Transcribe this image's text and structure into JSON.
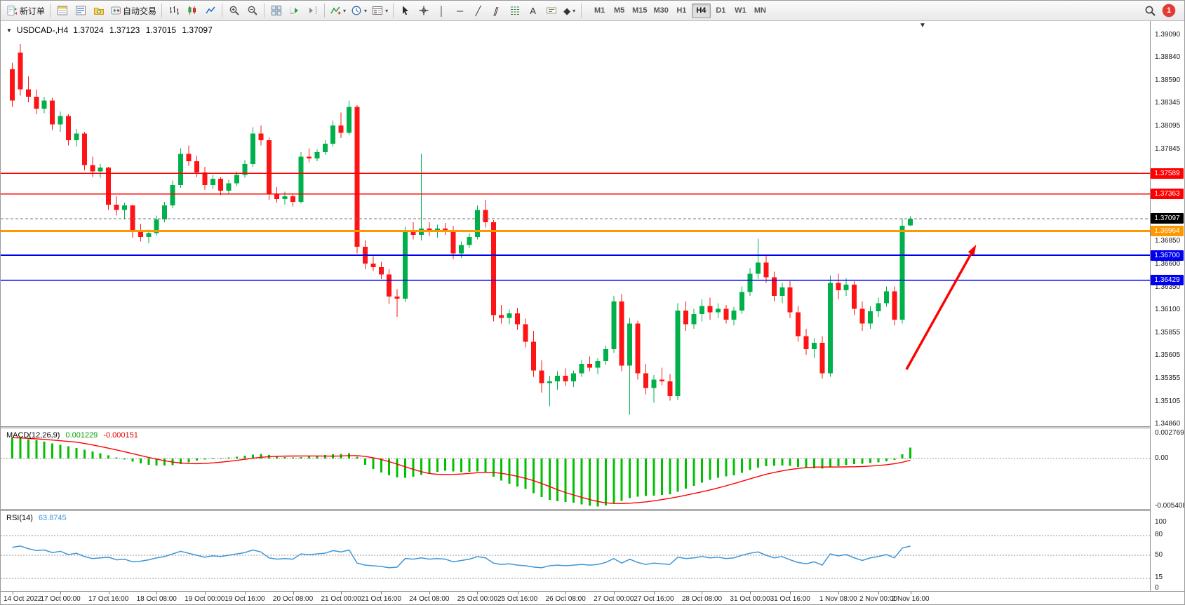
{
  "toolbar": {
    "new_order": "新订单",
    "autotrading": "自动交易",
    "timeframes": [
      "M1",
      "M5",
      "M15",
      "M30",
      "H1",
      "H4",
      "D1",
      "W1",
      "MN"
    ],
    "active_timeframe": "H4",
    "notification_count": "1",
    "glyphs": {
      "caret": "▾",
      "vline": "│",
      "hline": "─",
      "trendline": "╱",
      "channel": "∥",
      "text": "A",
      "arrows": "◆"
    }
  },
  "chart": {
    "symbol_caret": "▼",
    "title": "USDCAD-,H4",
    "ohlc": "1.37024 1.37123 1.37015 1.37097",
    "shift_marker": "▼"
  },
  "chart_data": {
    "type": "candlestick",
    "symbol": "USDCAD-",
    "timeframe": "H4",
    "current": {
      "open": 1.37024,
      "high": 1.37123,
      "low": 1.37015,
      "close": 1.37097
    },
    "colors": {
      "bull": "#00b04a",
      "bear": "#fe1414"
    },
    "y_axis_ticks": [
      "1.39090",
      "1.38840",
      "1.38590",
      "1.38345",
      "1.38095",
      "1.37845",
      "1.36850",
      "1.36600",
      "1.36350",
      "1.36100",
      "1.35855",
      "1.35605",
      "1.35355",
      "1.35105",
      "1.34860"
    ],
    "x_labels": [
      "14 Oct 2022",
      "17 Oct 00:00",
      "17 Oct 16:00",
      "18 Oct 08:00",
      "19 Oct 00:00",
      "19 Oct 16:00",
      "20 Oct 08:00",
      "21 Oct 00:00",
      "21 Oct 16:00",
      "24 Oct 08:00",
      "25 Oct 00:00",
      "25 Oct 16:00",
      "26 Oct 08:00",
      "27 Oct 00:00",
      "27 Oct 16:00",
      "28 Oct 08:00",
      "31 Oct 00:00",
      "31 Oct 16:00",
      "1 Nov 08:00",
      "2 Nov 00:00",
      "2 Nov 16:00"
    ],
    "x_label_bars": [
      0,
      6,
      12,
      18,
      24,
      29,
      35,
      41,
      46,
      52,
      58,
      63,
      69,
      75,
      80,
      86,
      92,
      97,
      103,
      108,
      112
    ],
    "hlines": [
      {
        "price": 1.37589,
        "label": "1.37589",
        "color": "#ff0000",
        "width": 1.4
      },
      {
        "price": 1.37363,
        "label": "1.37363",
        "color": "#ff0000",
        "width": 1.4
      },
      {
        "price": 1.36964,
        "label": "1.36964",
        "color": "#ff9800",
        "width": 3
      },
      {
        "price": 1.367,
        "label": "1.36700",
        "color": "#0000ee",
        "width": 1.8
      },
      {
        "price": 1.36429,
        "label": "1.36429",
        "color": "#0000ee",
        "width": 1.8
      }
    ],
    "current_price": {
      "value": 1.37097,
      "label": "1.37097",
      "color": "#000000"
    },
    "trend_arrow": {
      "from_bar": 111.5,
      "from_price": 1.3546,
      "to_bar": 120.2,
      "to_price": 1.36815,
      "color": "#ff0000"
    },
    "candles": [
      [
        1.3872,
        1.3879,
        1.3831,
        1.3838
      ],
      [
        1.389,
        1.3899,
        1.3843,
        1.385
      ],
      [
        1.385,
        1.3864,
        1.3836,
        1.3842
      ],
      [
        1.3842,
        1.385,
        1.3823,
        1.3829
      ],
      [
        1.3829,
        1.3842,
        1.3824,
        1.3838
      ],
      [
        1.3838,
        1.3841,
        1.3806,
        1.3812
      ],
      [
        1.3812,
        1.3826,
        1.3804,
        1.3821
      ],
      [
        1.3821,
        1.3823,
        1.3789,
        1.3795
      ],
      [
        1.3795,
        1.3807,
        1.3788,
        1.3802
      ],
      [
        1.3802,
        1.3804,
        1.3762,
        1.3768
      ],
      [
        1.3768,
        1.3777,
        1.3755,
        1.3761
      ],
      [
        1.3761,
        1.3769,
        1.3754,
        1.3765
      ],
      [
        1.3765,
        1.3766,
        1.3719,
        1.3725
      ],
      [
        1.3725,
        1.3734,
        1.3713,
        1.3719
      ],
      [
        1.3719,
        1.3727,
        1.3709,
        1.3724
      ],
      [
        1.3724,
        1.3725,
        1.3689,
        1.3695
      ],
      [
        1.3695,
        1.3704,
        1.3685,
        1.369
      ],
      [
        1.369,
        1.3698,
        1.3683,
        1.3694
      ],
      [
        1.3694,
        1.3713,
        1.3691,
        1.3709
      ],
      [
        1.3709,
        1.3728,
        1.3706,
        1.3724
      ],
      [
        1.3724,
        1.3751,
        1.3721,
        1.3746
      ],
      [
        1.3746,
        1.3786,
        1.3743,
        1.378
      ],
      [
        1.378,
        1.3789,
        1.3767,
        1.3772
      ],
      [
        1.3772,
        1.3778,
        1.3755,
        1.376
      ],
      [
        1.376,
        1.3766,
        1.3741,
        1.3746
      ],
      [
        1.3746,
        1.3757,
        1.3742,
        1.3753
      ],
      [
        1.3753,
        1.3755,
        1.3735,
        1.374
      ],
      [
        1.374,
        1.3752,
        1.3737,
        1.3748
      ],
      [
        1.3748,
        1.3761,
        1.3745,
        1.3757
      ],
      [
        1.3757,
        1.3773,
        1.3754,
        1.3769
      ],
      [
        1.3769,
        1.3809,
        1.3766,
        1.3802
      ],
      [
        1.3802,
        1.3811,
        1.3789,
        1.3795
      ],
      [
        1.3795,
        1.3798,
        1.373,
        1.3736
      ],
      [
        1.3736,
        1.3744,
        1.3727,
        1.3731
      ],
      [
        1.3731,
        1.3739,
        1.3725,
        1.3734
      ],
      [
        1.3734,
        1.3736,
        1.3723,
        1.3728
      ],
      [
        1.3728,
        1.3782,
        1.3726,
        1.3777
      ],
      [
        1.3777,
        1.3786,
        1.3771,
        1.3775
      ],
      [
        1.3775,
        1.3785,
        1.3772,
        1.3782
      ],
      [
        1.3782,
        1.3795,
        1.3779,
        1.3791
      ],
      [
        1.3791,
        1.3816,
        1.3788,
        1.3811
      ],
      [
        1.3811,
        1.3825,
        1.3797,
        1.3803
      ],
      [
        1.3803,
        1.3838,
        1.38,
        1.3831
      ],
      [
        1.3831,
        1.3833,
        1.3672,
        1.3679
      ],
      [
        1.3679,
        1.3686,
        1.3655,
        1.3661
      ],
      [
        1.3661,
        1.3669,
        1.3653,
        1.3657
      ],
      [
        1.3657,
        1.3663,
        1.3644,
        1.3649
      ],
      [
        1.3649,
        1.3655,
        1.3617,
        1.3625
      ],
      [
        1.3625,
        1.3633,
        1.3603,
        1.3623
      ],
      [
        1.3623,
        1.3701,
        1.3619,
        1.3695
      ],
      [
        1.3695,
        1.3706,
        1.3687,
        1.3692
      ],
      [
        1.3692,
        1.378,
        1.3686,
        1.3699
      ],
      [
        1.3699,
        1.3706,
        1.3691,
        1.3695
      ],
      [
        1.3695,
        1.3703,
        1.3689,
        1.3699
      ],
      [
        1.3699,
        1.3705,
        1.3692,
        1.3696
      ],
      [
        1.3696,
        1.3702,
        1.3666,
        1.3672
      ],
      [
        1.3672,
        1.3685,
        1.3667,
        1.3681
      ],
      [
        1.3681,
        1.3694,
        1.3678,
        1.369
      ],
      [
        1.369,
        1.3724,
        1.3687,
        1.3719
      ],
      [
        1.3719,
        1.373,
        1.37,
        1.3706
      ],
      [
        1.3706,
        1.3708,
        1.3598,
        1.3605
      ],
      [
        1.3605,
        1.3616,
        1.3596,
        1.3602
      ],
      [
        1.3602,
        1.3611,
        1.3595,
        1.3607
      ],
      [
        1.3607,
        1.3613,
        1.3589,
        1.3595
      ],
      [
        1.3595,
        1.3601,
        1.357,
        1.3576
      ],
      [
        1.3576,
        1.3588,
        1.3538,
        1.3545
      ],
      [
        1.3545,
        1.3556,
        1.3521,
        1.3531
      ],
      [
        1.3531,
        1.3539,
        1.3506,
        1.3533
      ],
      [
        1.3533,
        1.3544,
        1.3524,
        1.3539
      ],
      [
        1.3539,
        1.3547,
        1.3528,
        1.3533
      ],
      [
        1.3533,
        1.3545,
        1.3527,
        1.3542
      ],
      [
        1.3542,
        1.3556,
        1.3538,
        1.3552
      ],
      [
        1.3552,
        1.356,
        1.3544,
        1.3548
      ],
      [
        1.3548,
        1.3558,
        1.3541,
        1.3555
      ],
      [
        1.3555,
        1.3572,
        1.3551,
        1.3568
      ],
      [
        1.3568,
        1.3626,
        1.3564,
        1.362
      ],
      [
        1.362,
        1.3628,
        1.3544,
        1.355
      ],
      [
        1.355,
        1.3602,
        1.3497,
        1.3596
      ],
      [
        1.3596,
        1.3599,
        1.3535,
        1.3542
      ],
      [
        1.3542,
        1.3552,
        1.3519,
        1.3526
      ],
      [
        1.3526,
        1.354,
        1.351,
        1.3535
      ],
      [
        1.3535,
        1.3548,
        1.3529,
        1.3533
      ],
      [
        1.3533,
        1.3541,
        1.3512,
        1.3517
      ],
      [
        1.3517,
        1.3618,
        1.3513,
        1.361
      ],
      [
        1.361,
        1.362,
        1.3588,
        1.3595
      ],
      [
        1.3595,
        1.3612,
        1.359,
        1.3606
      ],
      [
        1.3606,
        1.3622,
        1.3598,
        1.3615
      ],
      [
        1.3615,
        1.3624,
        1.36,
        1.3608
      ],
      [
        1.3608,
        1.3618,
        1.3602,
        1.3612
      ],
      [
        1.3612,
        1.3616,
        1.3596,
        1.36
      ],
      [
        1.36,
        1.3614,
        1.3594,
        1.361
      ],
      [
        1.361,
        1.3636,
        1.3606,
        1.363
      ],
      [
        1.363,
        1.3656,
        1.3626,
        1.365
      ],
      [
        1.365,
        1.3688,
        1.3644,
        1.3662
      ],
      [
        1.3662,
        1.367,
        1.364,
        1.3646
      ],
      [
        1.3646,
        1.3652,
        1.362,
        1.3626
      ],
      [
        1.3626,
        1.364,
        1.3618,
        1.3635
      ],
      [
        1.3635,
        1.3642,
        1.3602,
        1.3608
      ],
      [
        1.3608,
        1.3615,
        1.3576,
        1.3582
      ],
      [
        1.3582,
        1.359,
        1.3562,
        1.3568
      ],
      [
        1.3568,
        1.358,
        1.3558,
        1.3575
      ],
      [
        1.3575,
        1.3582,
        1.3536,
        1.3542
      ],
      [
        1.3542,
        1.3648,
        1.3538,
        1.364
      ],
      [
        1.364,
        1.365,
        1.3622,
        1.3632
      ],
      [
        1.3632,
        1.3645,
        1.3626,
        1.3638
      ],
      [
        1.3638,
        1.3642,
        1.3605,
        1.3612
      ],
      [
        1.3612,
        1.362,
        1.3588,
        1.3596
      ],
      [
        1.3596,
        1.3615,
        1.359,
        1.3609
      ],
      [
        1.3609,
        1.3624,
        1.3603,
        1.3618
      ],
      [
        1.3618,
        1.3636,
        1.3614,
        1.3631
      ],
      [
        1.3631,
        1.3636,
        1.3594,
        1.36
      ],
      [
        1.36,
        1.371,
        1.3596,
        1.3702
      ],
      [
        1.37024,
        1.37123,
        1.37015,
        1.37097
      ]
    ],
    "macd": {
      "name": "MACD(12,26,9)",
      "value": "0.001229",
      "signal_value": "-0.000151",
      "axis": [
        "0.002769",
        "0.00",
        "-0.005408"
      ],
      "hist_color": "#00c000",
      "signal_color": "#ff0000",
      "values": [
        0.00235,
        0.00228,
        0.00218,
        0.00205,
        0.0019,
        0.00172,
        0.00155,
        0.00138,
        0.0012,
        0.001,
        0.00078,
        0.00058,
        0.00035,
        0.0001,
        -0.00012,
        -0.00035,
        -0.00055,
        -0.0007,
        -0.00078,
        -0.0008,
        -0.00075,
        -0.00062,
        -0.00045,
        -0.00025,
        -0.00012,
        -5e-05,
        2e-05,
        0.0001,
        0.0002,
        0.00032,
        0.00045,
        0.00052,
        0.0004,
        0.00025,
        0.00015,
        0.0001,
        0.00015,
        0.00022,
        0.0003,
        0.00038,
        0.00046,
        0.00052,
        0.00058,
        0.0002,
        -0.0007,
        -0.0012,
        -0.0016,
        -0.0019,
        -0.00212,
        -0.00218,
        -0.00205,
        -0.00185,
        -0.00165,
        -0.0015,
        -0.0014,
        -0.00148,
        -0.00155,
        -0.00152,
        -0.00148,
        -0.00158,
        -0.00205,
        -0.0025,
        -0.00285,
        -0.00315,
        -0.00345,
        -0.0039,
        -0.00435,
        -0.00468,
        -0.00482,
        -0.00492,
        -0.005,
        -0.0052,
        -0.00535,
        -0.00541,
        -0.00528,
        -0.00505,
        -0.00478,
        -0.00445,
        -0.0043,
        -0.00424,
        -0.00418,
        -0.00412,
        -0.00405,
        -0.00375,
        -0.00342,
        -0.00308,
        -0.00272,
        -0.00242,
        -0.00218,
        -0.00202,
        -0.00188,
        -0.00162,
        -0.00132,
        -0.00102,
        -0.00088,
        -0.00083,
        -0.0008,
        -0.00084,
        -0.00094,
        -0.00104,
        -0.0011,
        -0.00116,
        -0.00104,
        -0.00088,
        -0.00074,
        -0.00064,
        -0.0006,
        -0.00053,
        -0.00044,
        -0.00031,
        -0.00016,
        0.00048,
        0.001229
      ]
    },
    "rsi": {
      "name": "RSI(14)",
      "value": "63.8745",
      "axis": [
        "100",
        "80",
        "50",
        "15",
        "0"
      ],
      "levels": [
        80,
        50,
        15
      ],
      "line_color": "#3e96d8",
      "values": [
        62,
        64,
        60,
        57,
        58,
        54,
        56,
        51,
        53,
        48,
        45,
        46,
        47,
        43,
        44,
        40,
        41,
        43,
        46,
        48,
        52,
        56,
        53,
        50,
        47,
        49,
        48,
        50,
        52,
        54,
        58,
        55,
        46,
        44,
        45,
        44,
        52,
        51,
        52,
        53,
        57,
        55,
        58,
        38,
        35,
        34,
        33,
        31,
        32,
        45,
        44,
        46,
        44,
        45,
        44,
        40,
        42,
        44,
        48,
        46,
        38,
        36,
        37,
        35,
        34,
        32,
        31,
        34,
        35,
        34,
        35,
        36,
        35,
        36,
        39,
        45,
        38,
        44,
        39,
        36,
        38,
        37,
        36,
        47,
        45,
        46,
        48,
        46,
        47,
        45,
        46,
        50,
        53,
        55,
        50,
        46,
        48,
        43,
        39,
        37,
        40,
        35,
        52,
        49,
        51,
        46,
        42,
        46,
        48,
        51,
        46,
        61,
        63.8745
      ]
    }
  }
}
